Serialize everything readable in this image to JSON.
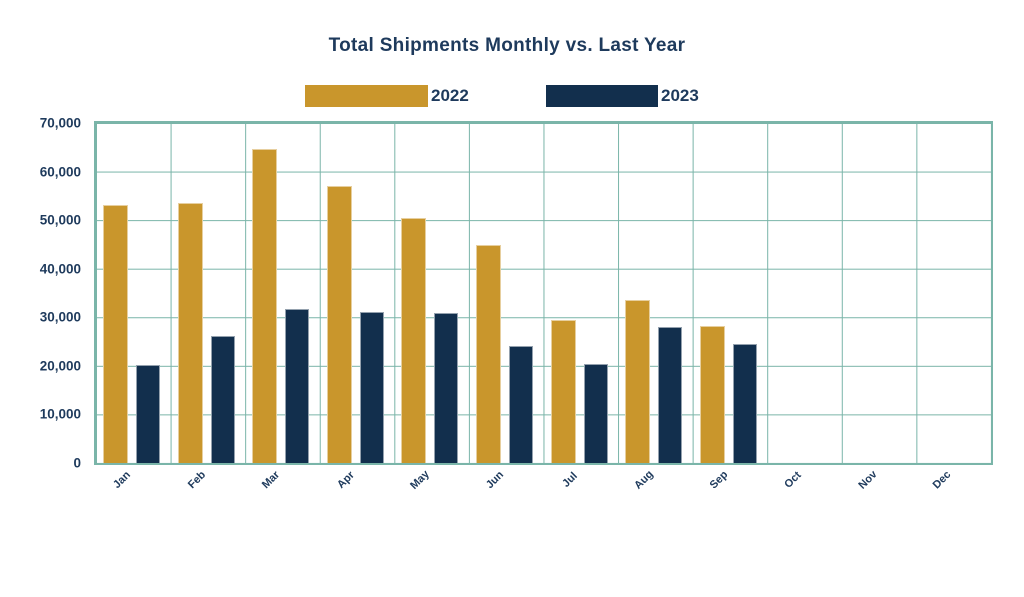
{
  "chart_data": {
    "type": "bar",
    "title": "Total Shipments Monthly vs. Last Year",
    "categories": [
      "Jan",
      "Feb",
      "Mar",
      "Apr",
      "May",
      "Jun",
      "Jul",
      "Aug",
      "Sep",
      "Oct",
      "Nov",
      "Dec"
    ],
    "series": [
      {
        "name": "2022",
        "color": "#c9962c",
        "values": [
          53200,
          53600,
          64700,
          57000,
          50400,
          44800,
          29500,
          33600,
          28300,
          null,
          null,
          null
        ]
      },
      {
        "name": "2023",
        "color": "#122f4d",
        "values": [
          20200,
          26200,
          31800,
          31100,
          30900,
          24000,
          20400,
          28000,
          24600,
          null,
          null,
          null
        ]
      }
    ],
    "xlabel": "",
    "ylabel": "",
    "ylim": [
      0,
      70000
    ],
    "ytick_step": 10000,
    "ytick_labels_top_to_bottom": [
      "70,000",
      "60,000",
      "50,000",
      "40,000",
      "30,000",
      "20,000",
      "10,000",
      "0"
    ],
    "grid": "both",
    "legend_position": "top"
  },
  "colors": {
    "series_2022": "#c9962c",
    "series_2023": "#122f4d",
    "gridline": "#79b4a8",
    "plot_border": "#7ab5a9",
    "text": "#1e3a5c",
    "background": "#ffffff"
  }
}
